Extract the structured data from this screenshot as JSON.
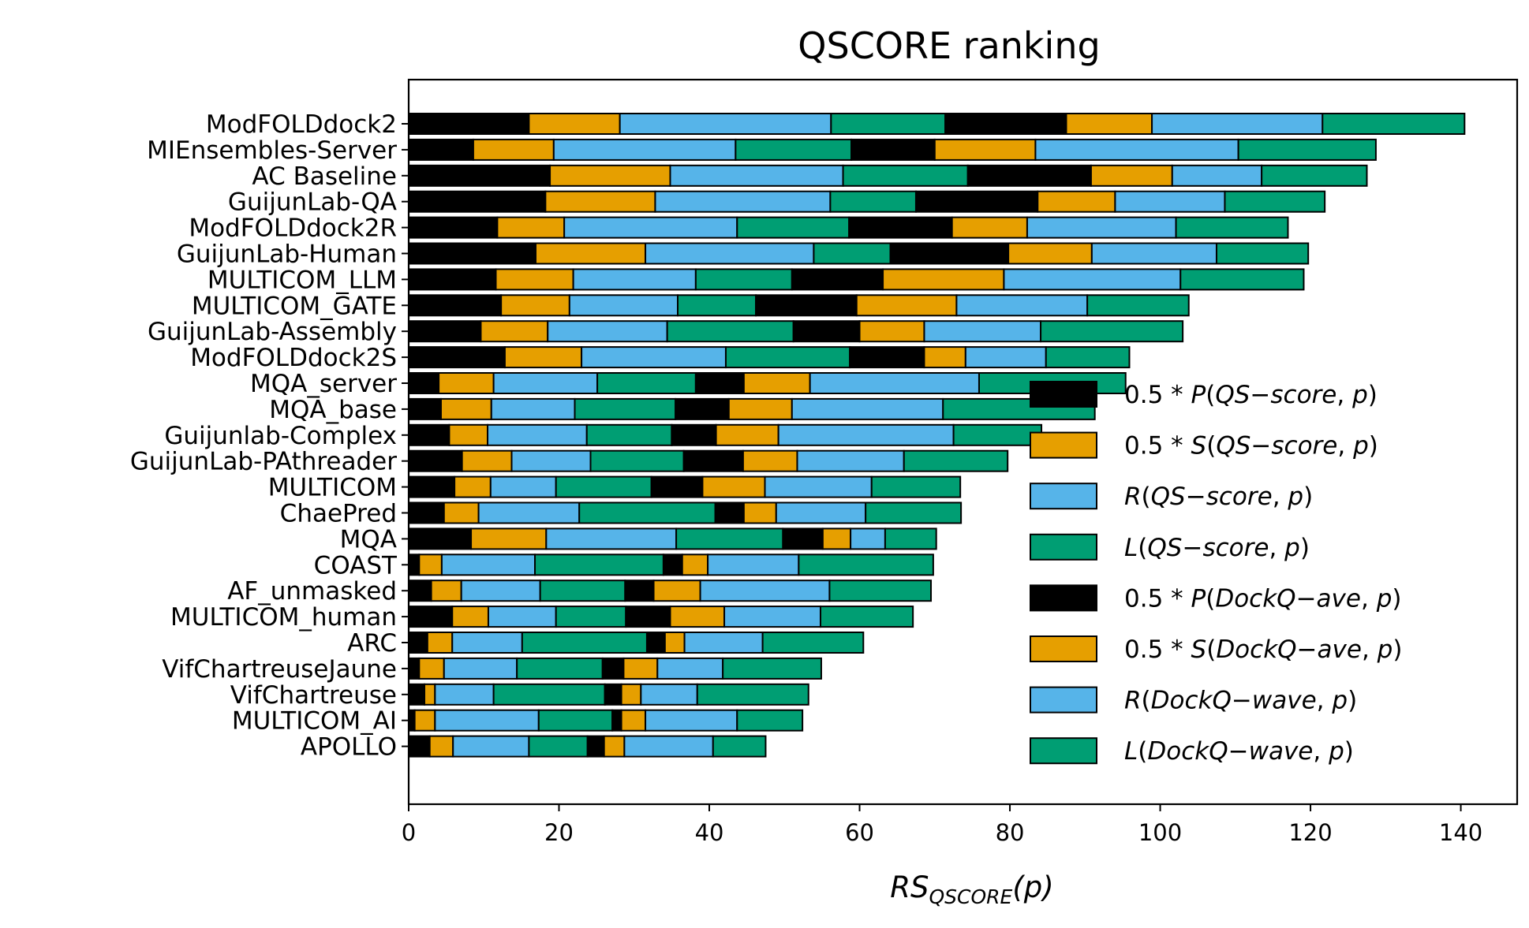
{
  "chart_data": {
    "type": "bar",
    "orientation": "horizontal",
    "stacked": true,
    "title": "QSCORE ranking",
    "xlabel": {
      "main": "RS",
      "sub": "QSCORE",
      "arg": "(p)"
    },
    "xlim": [
      0,
      147.5
    ],
    "xticks": [
      0,
      20,
      40,
      60,
      80,
      100,
      120,
      140
    ],
    "categories": [
      "ModFOLDdock2",
      "MIEnsembles-Server",
      "AC Baseline",
      "GuijunLab-QA",
      "ModFOLDdock2R",
      "GuijunLab-Human",
      "MULTICOM_LLM",
      "MULTICOM_GATE",
      "GuijunLab-Assembly",
      "ModFOLDdock2S",
      "MQA_server",
      "MQA_base",
      "Guijunlab-Complex",
      "GuijunLab-PAthreader",
      "MULTICOM",
      "ChaePred",
      "MQA",
      "COAST",
      "AF_unmasked",
      "MULTICOM_human",
      "ARC",
      "VifChartreuseJaune",
      "VifChartreuse",
      "MULTICOM_AI",
      "APOLLO"
    ],
    "series": [
      {
        "name": "0.5 * P(QS−score, p)",
        "label_parts": [
          "0.5 * ",
          "P",
          "(",
          "QS",
          "−",
          "score",
          ", ",
          "p",
          ")"
        ],
        "color": "#000000",
        "values": [
          16.0,
          8.6,
          18.8,
          18.2,
          11.8,
          16.9,
          11.6,
          12.3,
          9.6,
          12.8,
          4.0,
          4.3,
          5.4,
          7.1,
          6.1,
          4.7,
          8.3,
          1.4,
          3.0,
          5.8,
          2.5,
          1.4,
          2.1,
          0.8,
          2.8
        ]
      },
      {
        "name": "0.5 * S(QS−score, p)",
        "label_parts": [
          "0.5 * ",
          "S",
          "(",
          "QS",
          "−",
          "score",
          ", ",
          "p",
          ")"
        ],
        "color": "#E69F00",
        "values": [
          12.1,
          10.7,
          16.0,
          14.6,
          8.9,
          14.6,
          10.3,
          9.1,
          8.9,
          10.2,
          7.3,
          6.7,
          5.1,
          6.6,
          4.8,
          4.6,
          10.0,
          3.0,
          4.0,
          4.8,
          3.3,
          3.3,
          1.4,
          2.7,
          3.1
        ]
      },
      {
        "name": "R(QS−score, p)",
        "label_parts": [
          "",
          "R",
          "(",
          "QS",
          "−",
          "score",
          ", ",
          "p",
          ")"
        ],
        "color": "#56B4E9",
        "values": [
          28.1,
          24.2,
          23.0,
          23.3,
          23.0,
          22.4,
          16.3,
          14.4,
          15.9,
          19.2,
          13.8,
          11.1,
          13.2,
          10.5,
          8.7,
          13.4,
          17.3,
          12.4,
          10.5,
          9.0,
          9.3,
          9.7,
          7.8,
          13.8,
          10.1
        ]
      },
      {
        "name": "L(QS−score, p)",
        "label_parts": [
          "",
          "L",
          "(",
          "QS",
          "−",
          "score",
          ", ",
          "p",
          ")"
        ],
        "color": "#009E73",
        "values": [
          15.2,
          15.4,
          16.6,
          11.4,
          14.9,
          10.2,
          12.8,
          10.4,
          16.8,
          16.5,
          13.1,
          13.4,
          11.3,
          12.4,
          12.7,
          18.1,
          14.2,
          17.1,
          11.3,
          9.3,
          16.6,
          11.4,
          14.8,
          9.8,
          7.8
        ]
      },
      {
        "name": "0.5 * P(DockQ−ave, p)",
        "label_parts": [
          "0.5 * ",
          "P",
          "(",
          "DockQ",
          "−",
          "ave",
          ", ",
          "p",
          ")"
        ],
        "color": "#000000",
        "values": [
          16.1,
          11.1,
          16.4,
          16.2,
          13.7,
          15.7,
          12.1,
          13.4,
          8.8,
          9.9,
          6.4,
          7.1,
          5.9,
          7.9,
          6.8,
          3.8,
          5.3,
          2.5,
          3.8,
          5.9,
          2.4,
          2.8,
          2.2,
          1.2,
          2.2
        ]
      },
      {
        "name": "0.5 * S(DockQ−ave, p)",
        "label_parts": [
          "0.5 * ",
          "S",
          "(",
          "DockQ",
          "−",
          "ave",
          ", ",
          "p",
          ")"
        ],
        "color": "#E69F00",
        "values": [
          11.4,
          13.4,
          10.8,
          10.3,
          10.0,
          11.1,
          16.1,
          13.3,
          8.6,
          5.5,
          8.8,
          8.4,
          8.3,
          7.2,
          8.3,
          4.3,
          3.7,
          3.4,
          6.2,
          7.2,
          2.6,
          4.5,
          2.6,
          3.2,
          2.7
        ]
      },
      {
        "name": "R(DockQ−wave, p)",
        "label_parts": [
          "",
          "R",
          "(",
          "DockQ",
          "−",
          "wave",
          ", ",
          "p",
          ")"
        ],
        "color": "#56B4E9",
        "values": [
          22.7,
          27.0,
          11.9,
          14.6,
          19.8,
          16.6,
          23.5,
          17.4,
          15.5,
          10.7,
          22.5,
          20.1,
          23.3,
          14.2,
          14.2,
          11.9,
          4.6,
          12.1,
          17.2,
          12.8,
          10.4,
          8.7,
          7.5,
          12.2,
          11.8
        ]
      },
      {
        "name": "L(DockQ−wave, p)",
        "label_parts": [
          "",
          "L",
          "(",
          "DockQ",
          "−",
          "wave",
          ", ",
          "p",
          ")"
        ],
        "color": "#009E73",
        "values": [
          18.9,
          18.3,
          14.0,
          13.3,
          14.9,
          12.2,
          16.4,
          13.5,
          18.9,
          11.1,
          19.5,
          20.2,
          11.7,
          13.8,
          11.8,
          12.7,
          6.8,
          17.9,
          13.5,
          12.3,
          13.4,
          13.1,
          14.8,
          8.7,
          7.0
        ]
      }
    ],
    "grid": false,
    "legend_position": "lower-right"
  }
}
